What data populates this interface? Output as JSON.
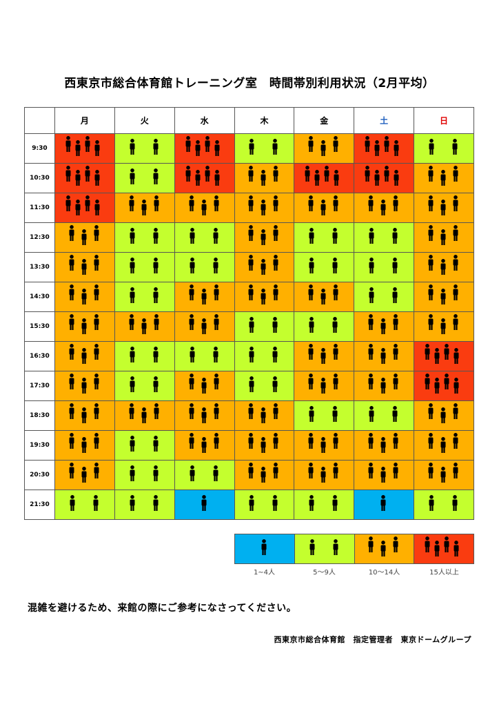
{
  "title": "西東京市総合体育館トレーニング室　時間帯別利用状況（2月平均）",
  "days": [
    {
      "label": "月",
      "color": "#000000"
    },
    {
      "label": "火",
      "color": "#000000"
    },
    {
      "label": "水",
      "color": "#000000"
    },
    {
      "label": "木",
      "color": "#000000"
    },
    {
      "label": "金",
      "color": "#000000"
    },
    {
      "label": "土",
      "color": "#1f5fbf"
    },
    {
      "label": "日",
      "color": "#e00000"
    }
  ],
  "level_colors": {
    "1": "#00b0f0",
    "2": "#c4ff2e",
    "3": "#ffb000",
    "4": "#fa3c10"
  },
  "icon": "person-icon",
  "rows": [
    {
      "time": "9:30",
      "levels": [
        4,
        2,
        4,
        2,
        3,
        4,
        2
      ]
    },
    {
      "time": "10:30",
      "levels": [
        4,
        2,
        4,
        3,
        4,
        4,
        3
      ]
    },
    {
      "time": "11:30",
      "levels": [
        4,
        3,
        3,
        3,
        3,
        3,
        3
      ]
    },
    {
      "time": "12:30",
      "levels": [
        3,
        2,
        2,
        3,
        2,
        2,
        3
      ]
    },
    {
      "time": "13:30",
      "levels": [
        3,
        2,
        2,
        3,
        2,
        2,
        3
      ]
    },
    {
      "time": "14:30",
      "levels": [
        3,
        2,
        3,
        3,
        3,
        2,
        3
      ]
    },
    {
      "time": "15:30",
      "levels": [
        3,
        3,
        3,
        2,
        2,
        3,
        3
      ]
    },
    {
      "time": "16:30",
      "levels": [
        3,
        2,
        2,
        2,
        3,
        3,
        4
      ]
    },
    {
      "time": "17:30",
      "levels": [
        3,
        2,
        3,
        2,
        3,
        3,
        4
      ]
    },
    {
      "time": "18:30",
      "levels": [
        3,
        3,
        3,
        3,
        2,
        2,
        3
      ]
    },
    {
      "time": "19:30",
      "levels": [
        3,
        2,
        3,
        3,
        3,
        3,
        3
      ]
    },
    {
      "time": "20:30",
      "levels": [
        3,
        2,
        2,
        3,
        3,
        3,
        3
      ]
    },
    {
      "time": "21:30",
      "levels": [
        2,
        2,
        1,
        2,
        2,
        1,
        2
      ]
    }
  ],
  "legend": [
    {
      "level": 1,
      "label": "1~4人"
    },
    {
      "level": 2,
      "label": "5～9人"
    },
    {
      "level": 3,
      "label": "10～14人"
    },
    {
      "level": 4,
      "label": "15人以上"
    }
  ],
  "note": "混雑を避けるため、来館の際にご参考になさってください。",
  "footer": "西東京市総合体育館　指定管理者　東京ドームグループ"
}
